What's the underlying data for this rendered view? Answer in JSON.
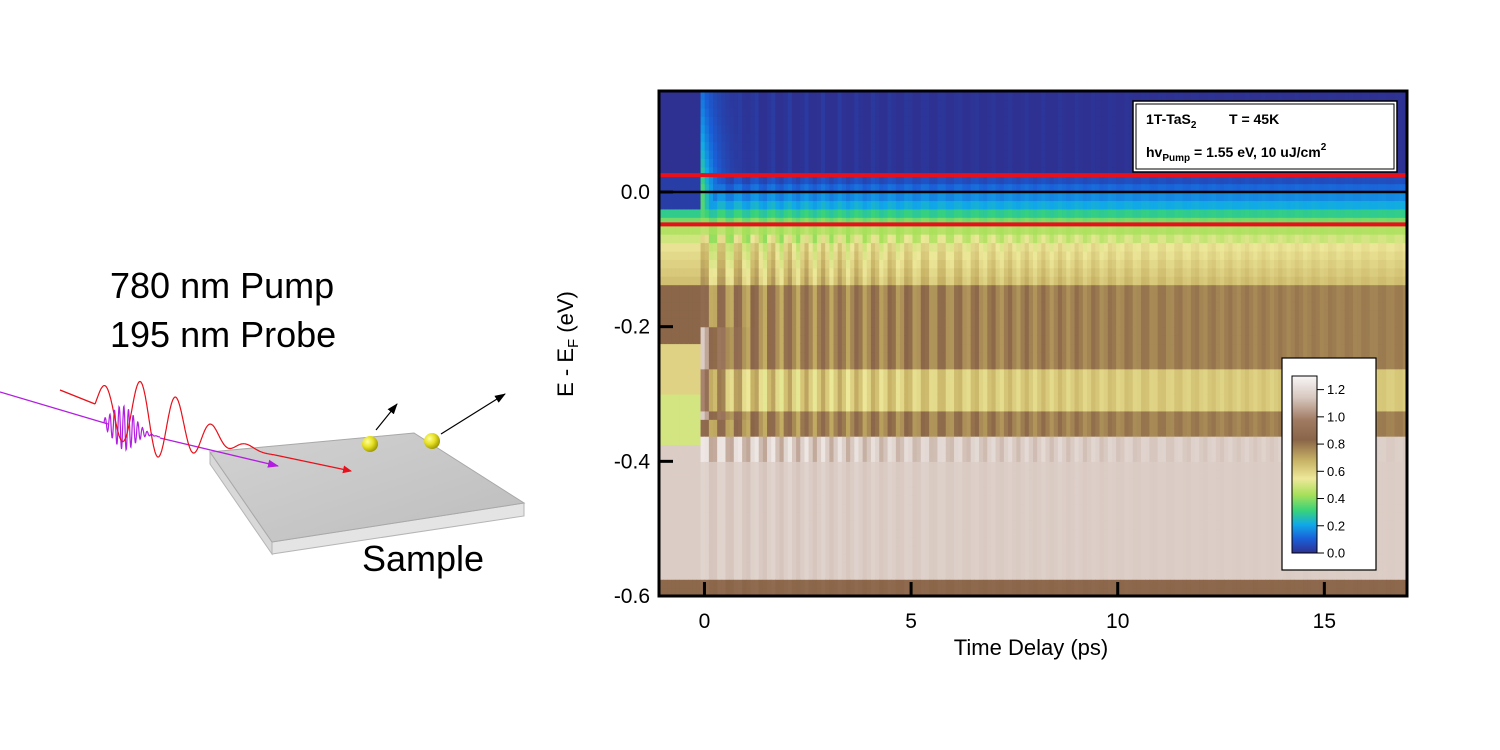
{
  "schematic": {
    "pump_label": "780 nm Pump",
    "probe_label": "195 nm Probe",
    "sample_label": "Sample"
  },
  "chart_data": {
    "type": "heatmap",
    "xlabel": "Time Delay (ps)",
    "ylabel_main": "E - E",
    "ylabel_sub": "F",
    "ylabel_tail": " (eV)",
    "xlim": [
      -1.1,
      17.0
    ],
    "ylim": [
      -0.6,
      0.15
    ],
    "xticks": [
      0,
      5,
      10,
      15
    ],
    "yticks": [
      0.0,
      -0.2,
      -0.4,
      -0.6
    ],
    "ytick_labels": [
      "0.0",
      "-0.2",
      "-0.4",
      "-0.6"
    ],
    "xtick_labels": [
      "0",
      "5",
      "10",
      "15"
    ],
    "legend": {
      "line1_material": "1T-TaS",
      "line1_sub": "2",
      "line1_temp": "T = 45K",
      "line2_hv": "hv",
      "line2_sub": "Pump",
      "line2_rest": " = 1.55 eV, 10 uJ/cm",
      "line2_sup": "2"
    },
    "horizontal_lines": [
      {
        "y": 0.025,
        "color": "#e8101a"
      },
      {
        "y": 0.0,
        "color": "#000000"
      },
      {
        "y": -0.048,
        "color": "#e8101a"
      }
    ],
    "colorbar": {
      "range": [
        0.0,
        1.3
      ],
      "ticks": [
        0.0,
        0.2,
        0.4,
        0.6,
        0.8,
        1.0,
        1.2
      ],
      "tick_labels": [
        "0.0",
        "0.2",
        "0.4",
        "0.6",
        "0.8",
        "1.0",
        "1.2"
      ],
      "colors": [
        "#2e3192",
        "#1a5fd8",
        "#10a8e8",
        "#38d37a",
        "#a8e05a",
        "#eee89a",
        "#c9b466",
        "#8a6548",
        "#a07a62",
        "#d8c8c0",
        "#f8f6f6"
      ]
    }
  }
}
